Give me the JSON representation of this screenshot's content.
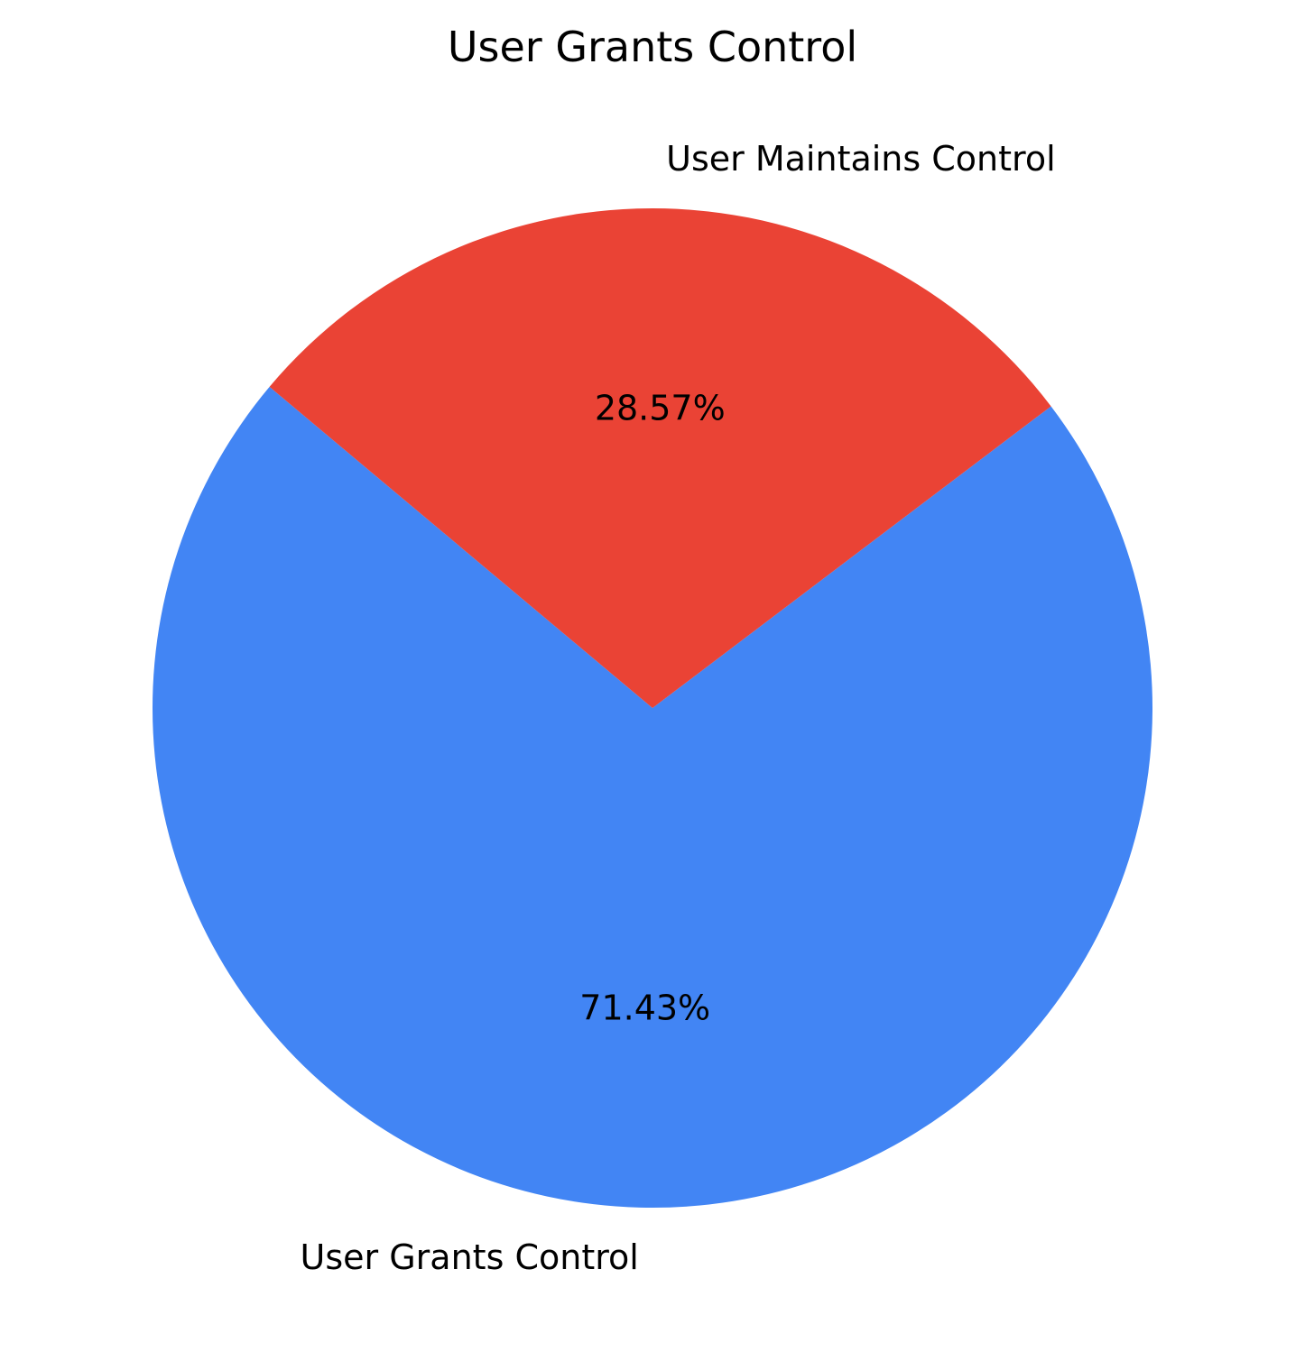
{
  "chart_data": {
    "type": "pie",
    "title": "User Grants Control",
    "categories": [
      "User Grants Control",
      "User Maintains Control"
    ],
    "values": [
      71.43,
      28.57
    ],
    "percent_labels": [
      "71.43%",
      "28.57%"
    ],
    "colors": [
      "#4285F4",
      "#EA4335"
    ],
    "legend": "none"
  }
}
